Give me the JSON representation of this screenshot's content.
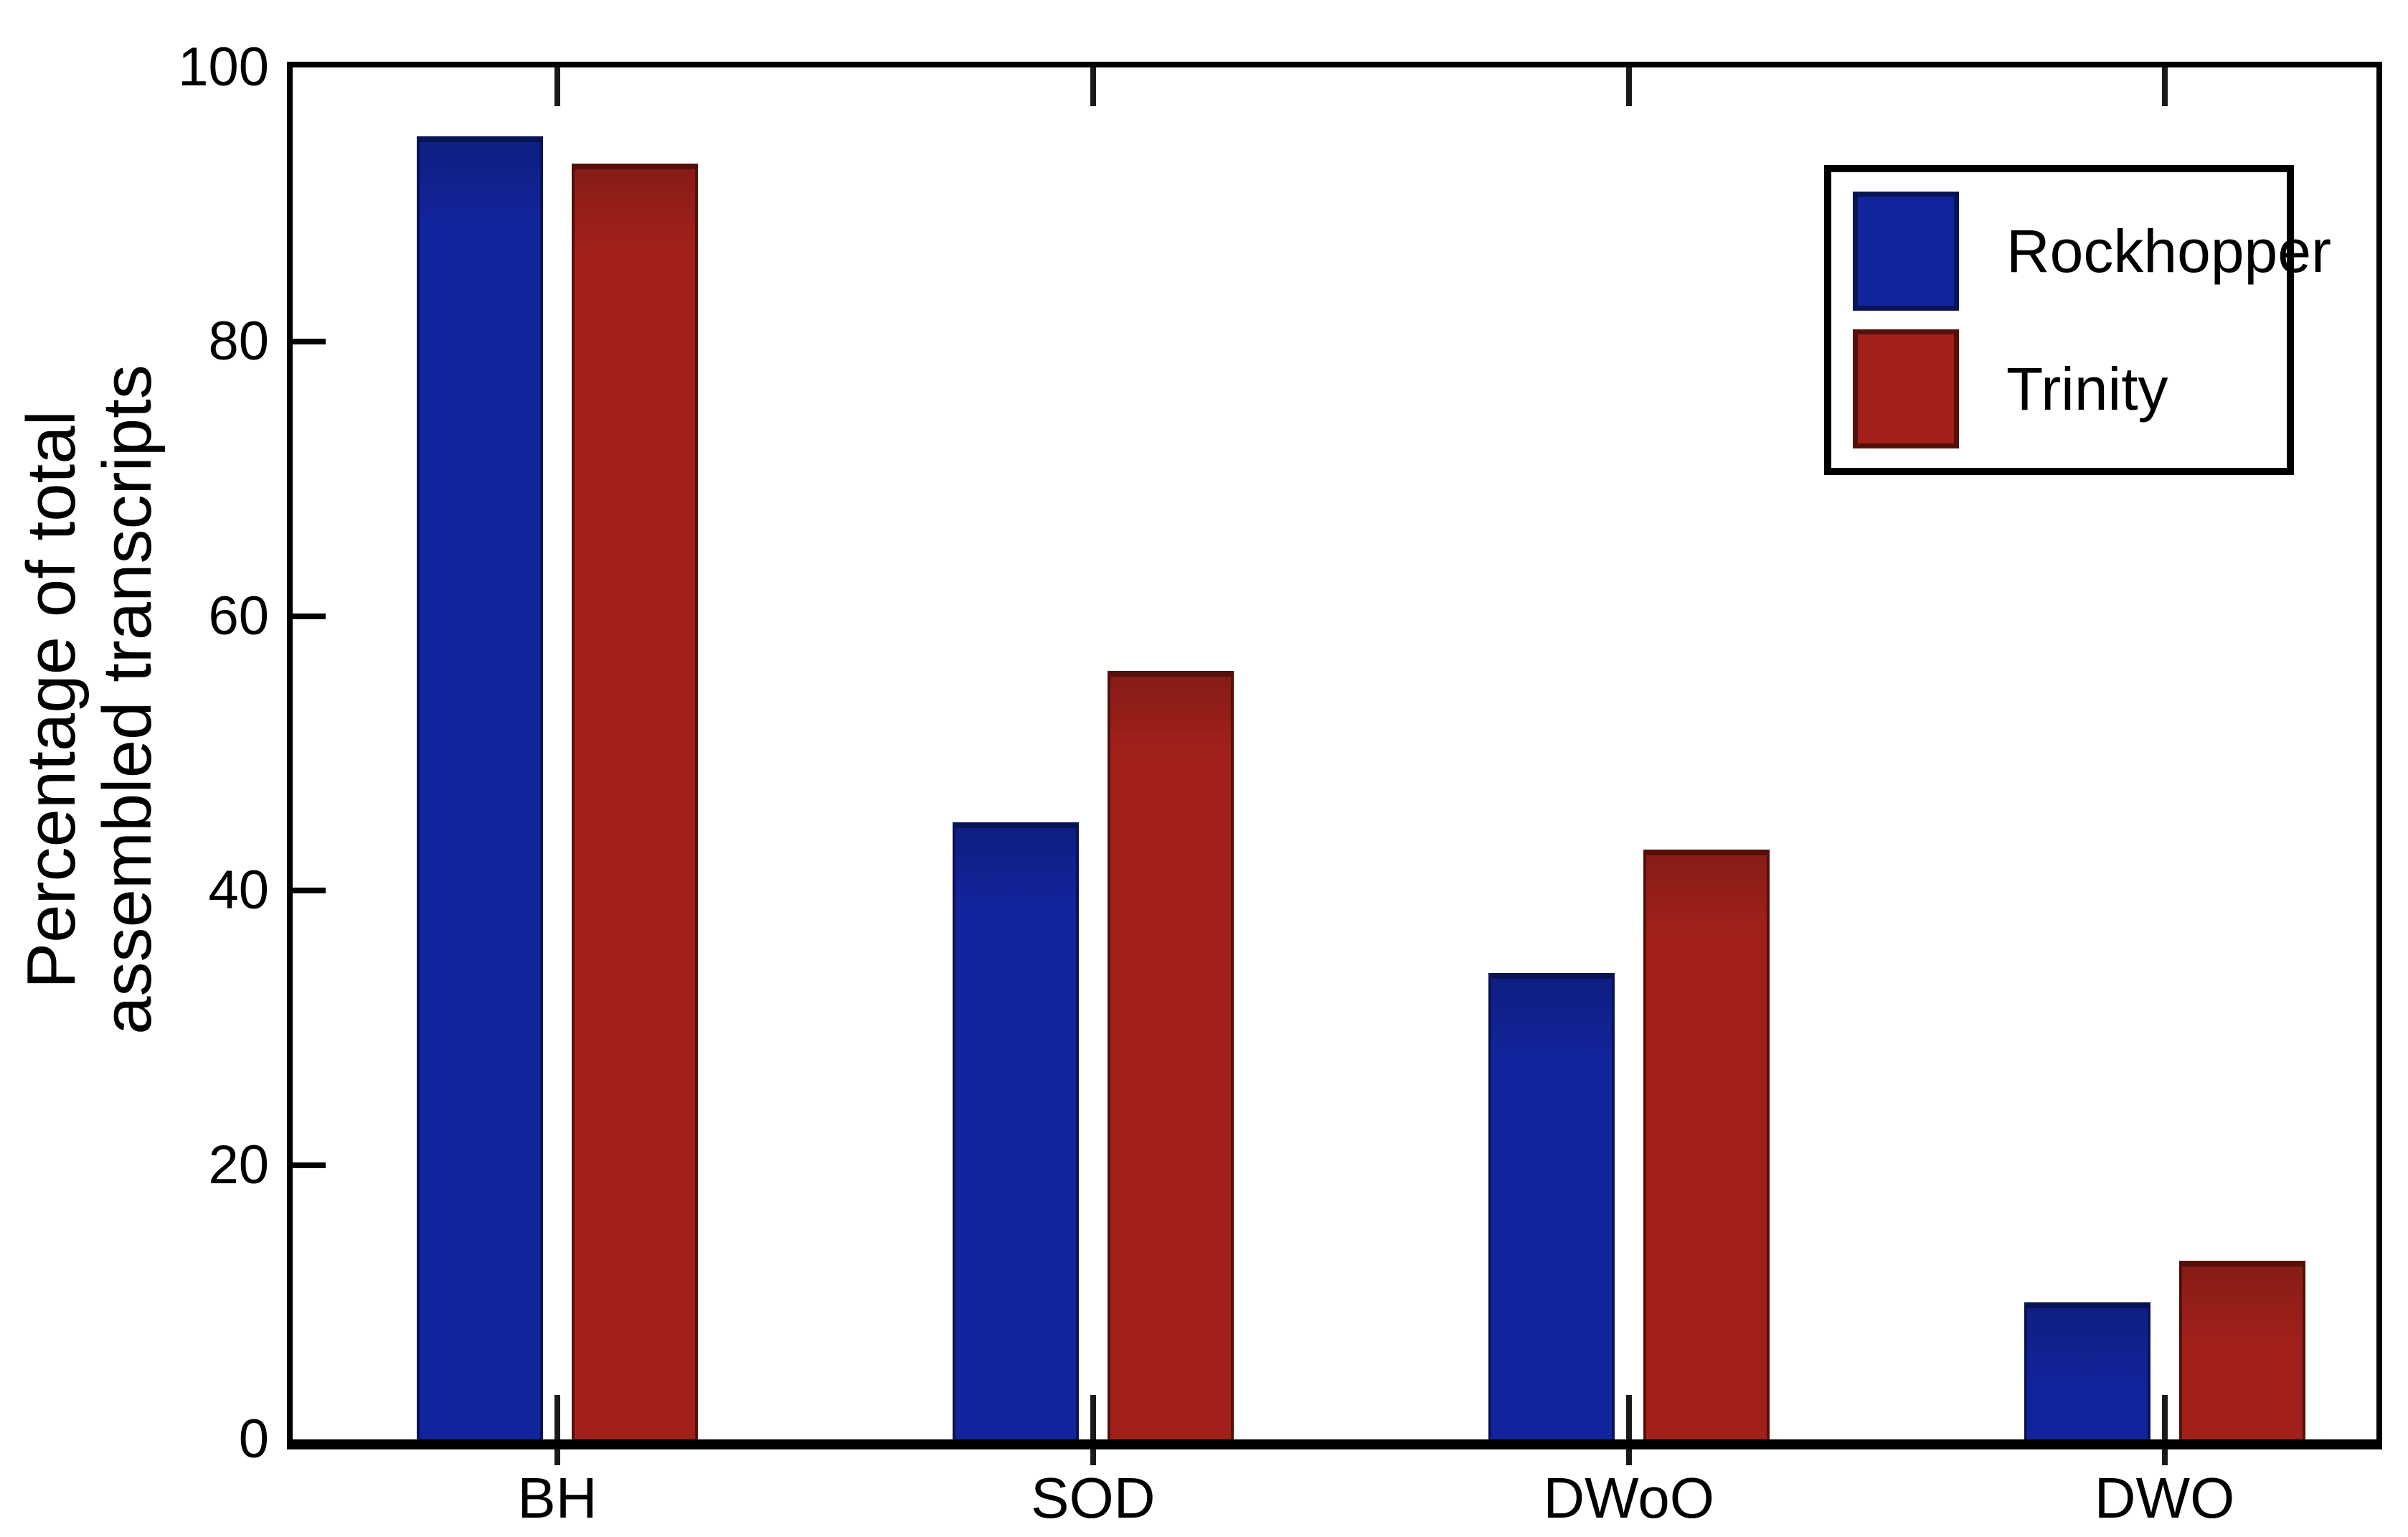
{
  "chart_data": {
    "type": "bar",
    "title": "",
    "xlabel": "",
    "ylabel_lines": [
      "Percentage of total",
      "assembled transcripts"
    ],
    "categories": [
      "BH",
      "SOD",
      "DWoO",
      "DWO"
    ],
    "series": [
      {
        "name": "Rockhopper",
        "color": "#12249B",
        "border_color": "#081456",
        "values": [
          95,
          45,
          34,
          10
        ]
      },
      {
        "name": "Trinity",
        "color": "#A1211A",
        "border_color": "#55100B",
        "values": [
          93,
          56,
          43,
          13
        ]
      }
    ],
    "ylim": [
      0,
      100
    ],
    "yticks": [
      0,
      20,
      40,
      60,
      80,
      100
    ],
    "grid": false,
    "legend_position": "upper right",
    "frame_color": "#000000",
    "text_color": "#000000",
    "background_color": "#ffffff"
  }
}
